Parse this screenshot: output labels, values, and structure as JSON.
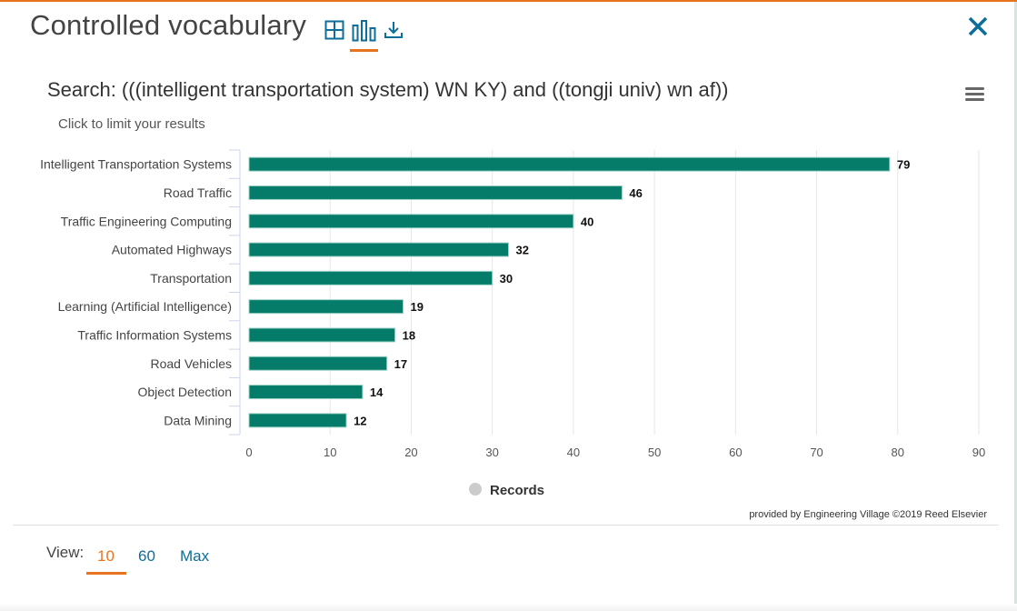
{
  "header": {
    "title": "Controlled vocabulary",
    "icons": [
      "table-icon",
      "bar-chart-icon",
      "download-icon",
      "close-icon",
      "menu-icon"
    ],
    "active_view_icon": "bar-chart-icon"
  },
  "search": {
    "query": "Search: (((intelligent transportation system) WN KY) and ((tongji univ) wn af))",
    "hint": "Click to limit your results"
  },
  "chart_data": {
    "type": "bar",
    "orientation": "horizontal",
    "categories": [
      "Intelligent Transportation Systems",
      "Road Traffic",
      "Traffic Engineering Computing",
      "Automated Highways",
      "Transportation",
      "Learning (Artificial Intelligence)",
      "Traffic Information Systems",
      "Road Vehicles",
      "Object Detection",
      "Data Mining"
    ],
    "series": [
      {
        "name": "Records",
        "values": [
          79,
          46,
          40,
          32,
          30,
          19,
          18,
          17,
          14,
          12
        ]
      }
    ],
    "xlim": [
      0,
      90
    ],
    "xticks": [
      "0",
      "10",
      "20",
      "30",
      "40",
      "50",
      "60",
      "70",
      "80",
      "90"
    ],
    "grid": true,
    "legend": {
      "position": "bottom-center",
      "entries": [
        "Records"
      ]
    },
    "title": "",
    "xlabel": "",
    "ylabel": "",
    "colors": {
      "bar": "#047c69",
      "bar_border": "#9fd3c8",
      "legend_marker": "#cccccc",
      "grid": "#e6e6e6",
      "axis": "#ccd6eb"
    }
  },
  "credit": "provided by Engineering Village ©2019 Reed Elsevier",
  "view": {
    "label": "View:",
    "options": [
      "10",
      "60",
      "Max"
    ],
    "active": "10"
  },
  "colors": {
    "accent": "#e8731f",
    "link": "#0d6e99"
  }
}
